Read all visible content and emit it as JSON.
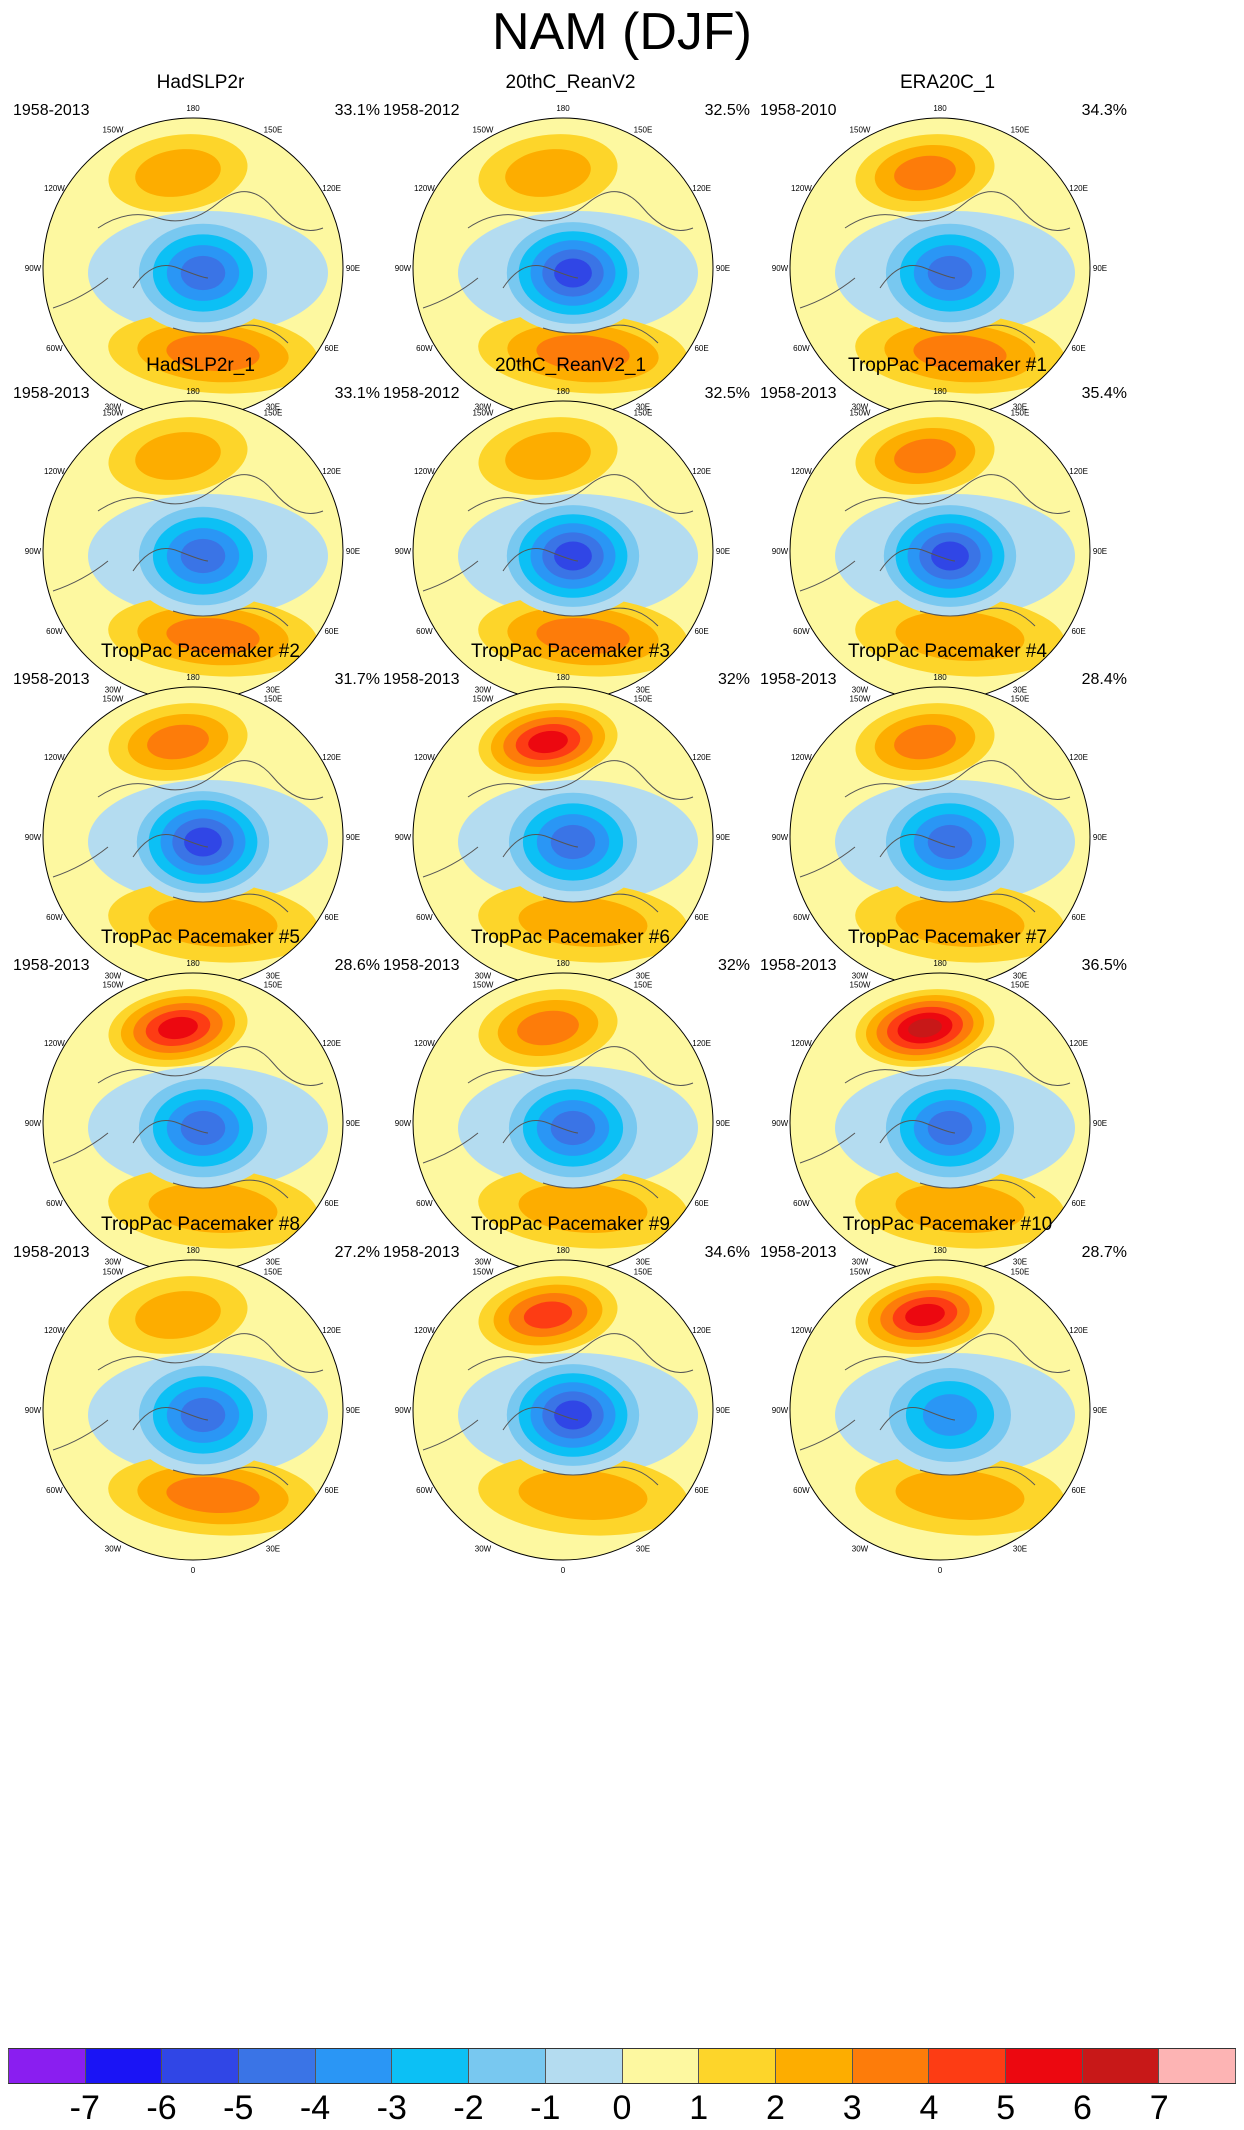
{
  "title": "NAM (DJF)",
  "chart_data": {
    "type": "polar-contour-map-grid",
    "title": "NAM (DJF)",
    "projection": "north-polar-stereographic",
    "longitude_labels": [
      "180",
      "150E",
      "120E",
      "90E",
      "60E",
      "30E",
      "0",
      "30W",
      "60W",
      "90W",
      "120W",
      "150W"
    ],
    "panels": [
      {
        "name": "HadSLP2r",
        "years": "1958-2013",
        "variance": "33.1%",
        "neg_peak": -5,
        "pos_pacific": 2,
        "pos_atlantic": 3
      },
      {
        "name": "20thC_ReanV2",
        "years": "1958-2012",
        "variance": "32.5%",
        "neg_peak": -6,
        "pos_pacific": 2,
        "pos_atlantic": 3
      },
      {
        "name": "ERA20C_1",
        "years": "1958-2010",
        "variance": "34.3%",
        "neg_peak": -5,
        "pos_pacific": 3,
        "pos_atlantic": 3
      },
      {
        "name": "HadSLP2r_1",
        "years": "1958-2013",
        "variance": "33.1%",
        "neg_peak": -5,
        "pos_pacific": 2,
        "pos_atlantic": 3
      },
      {
        "name": "20thC_ReanV2_1",
        "years": "1958-2012",
        "variance": "32.5%",
        "neg_peak": -6,
        "pos_pacific": 2,
        "pos_atlantic": 3
      },
      {
        "name": "TropPac Pacemaker #1",
        "years": "1958-2013",
        "variance": "35.4%",
        "neg_peak": -6,
        "pos_pacific": 3,
        "pos_atlantic": 2
      },
      {
        "name": "TropPac Pacemaker #2",
        "years": "1958-2013",
        "variance": "31.7%",
        "neg_peak": -6,
        "pos_pacific": 3,
        "pos_atlantic": 2
      },
      {
        "name": "TropPac Pacemaker #3",
        "years": "1958-2013",
        "variance": "32%",
        "neg_peak": -5,
        "pos_pacific": 5,
        "pos_atlantic": 2
      },
      {
        "name": "TropPac Pacemaker #4",
        "years": "1958-2013",
        "variance": "28.4%",
        "neg_peak": -5,
        "pos_pacific": 3,
        "pos_atlantic": 2
      },
      {
        "name": "TropPac Pacemaker #5",
        "years": "1958-2013",
        "variance": "28.6%",
        "neg_peak": -5,
        "pos_pacific": 5,
        "pos_atlantic": 2
      },
      {
        "name": "TropPac Pacemaker #6",
        "years": "1958-2013",
        "variance": "32%",
        "neg_peak": -5,
        "pos_pacific": 3,
        "pos_atlantic": 2
      },
      {
        "name": "TropPac Pacemaker #7",
        "years": "1958-2013",
        "variance": "36.5%",
        "neg_peak": -5,
        "pos_pacific": 6,
        "pos_atlantic": 2
      },
      {
        "name": "TropPac Pacemaker #8",
        "years": "1958-2013",
        "variance": "27.2%",
        "neg_peak": -5,
        "pos_pacific": 2,
        "pos_atlantic": 3
      },
      {
        "name": "TropPac Pacemaker #9",
        "years": "1958-2013",
        "variance": "34.6%",
        "neg_peak": -6,
        "pos_pacific": 4,
        "pos_atlantic": 2
      },
      {
        "name": "TropPac Pacemaker #10",
        "years": "1958-2013",
        "variance": "28.7%",
        "neg_peak": -4,
        "pos_pacific": 5,
        "pos_atlantic": 2
      }
    ],
    "colorbar": {
      "labels": [
        "-7",
        "-6",
        "-5",
        "-4",
        "-3",
        "-2",
        "-1",
        "0",
        "1",
        "2",
        "3",
        "4",
        "5",
        "6",
        "7"
      ],
      "colors": [
        "#8a1ef0",
        "#1a14f5",
        "#3046e6",
        "#3a74e6",
        "#2a96f5",
        "#0cc0f5",
        "#78c8f0",
        "#b4dcf0",
        "#fdf8a0",
        "#fdd52a",
        "#fdad00",
        "#fd7c0a",
        "#fd3c14",
        "#ec0810",
        "#c81818",
        "#fdb4b4"
      ]
    }
  }
}
